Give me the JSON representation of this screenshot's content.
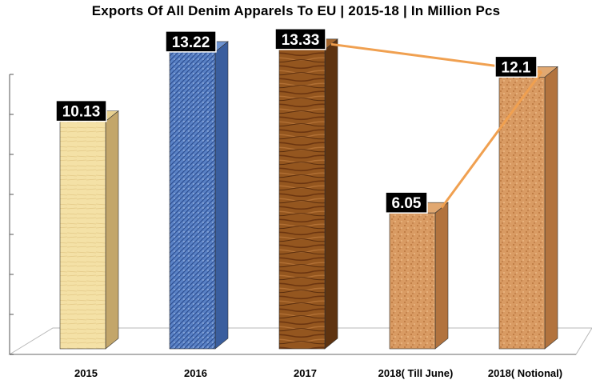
{
  "chart_data": {
    "type": "bar",
    "title": "Exports Of All Denim Apparels To EU | 2015-18 | In Million Pcs",
    "xlabel": "",
    "ylabel": "",
    "categories": [
      "2015",
      "2016",
      "2017",
      "2018( Till June)",
      "2018( Notional)"
    ],
    "values": [
      10.13,
      13.22,
      13.33,
      6.05,
      12.1
    ],
    "data_labels": [
      "10.13",
      "13.22",
      "13.33",
      "6.05",
      "12.1"
    ],
    "ylim": [
      0,
      14
    ],
    "grid": false,
    "legend": "none",
    "connector_lines": [
      {
        "from": "2017",
        "to": "2018( Notional)"
      },
      {
        "from": "2018( Till June)",
        "to": "2018( Notional)"
      }
    ],
    "colors": {
      "bar_2015": "#f3dfa2",
      "bar_2016": "#4f78c0",
      "bar_2017": "#8a4e1c",
      "bar_2018_till_june": "#d99b63",
      "bar_2018_notional": "#d99b63",
      "connector": "#f0a050",
      "label_bg": "#000000"
    }
  }
}
